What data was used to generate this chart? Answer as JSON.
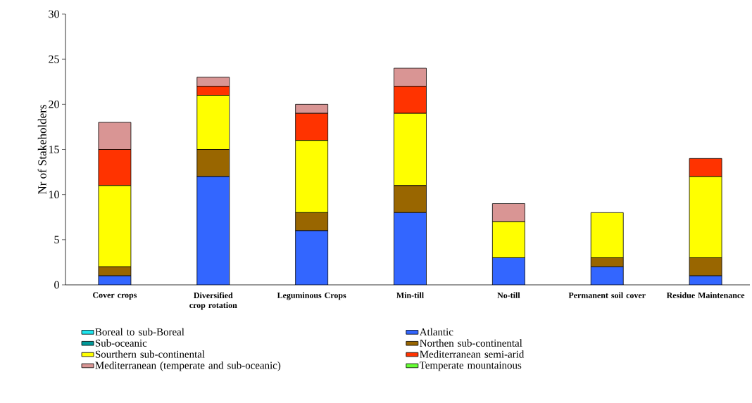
{
  "chart_data": {
    "type": "bar",
    "stacked": true,
    "ylabel": "Nr of Stakeholders",
    "categories": [
      "Cover crops",
      "Diversified crop rotation",
      "Leguminous Crops",
      "Min-till",
      "No-till",
      "Permanent soil cover",
      "Residue Maintenance"
    ],
    "series": [
      {
        "name": "Boreal to sub-Boreal",
        "color": "#1fe5ee",
        "values": [
          0,
          0,
          0,
          0,
          0,
          0,
          0
        ]
      },
      {
        "name": "Atlantic",
        "color": "#3366ff",
        "values": [
          1,
          12,
          6,
          8,
          3,
          2,
          1
        ]
      },
      {
        "name": "Sub-oceanic",
        "color": "#009999",
        "values": [
          0,
          0,
          0,
          0,
          0,
          0,
          0
        ]
      },
      {
        "name": "Northen sub-continental",
        "color": "#996600",
        "values": [
          1,
          3,
          2,
          3,
          0,
          1,
          2
        ]
      },
      {
        "name": "Sourthern sub-continental",
        "color": "#ffff00",
        "values": [
          9,
          6,
          8,
          8,
          4,
          5,
          9
        ]
      },
      {
        "name": "Mediterranean semi-arid",
        "color": "#ff3300",
        "values": [
          4,
          1,
          3,
          3,
          0,
          0,
          2
        ]
      },
      {
        "name": "Mediterranean (temperate and sub-oceanic)",
        "color": "#d99594",
        "values": [
          3,
          1,
          1,
          2,
          2,
          0,
          0
        ]
      },
      {
        "name": "Temperate mountainous",
        "color": "#66ff33",
        "values": [
          0,
          0,
          0,
          0,
          0,
          0,
          0
        ]
      }
    ],
    "ylim": [
      0,
      30
    ],
    "yticks": [
      0,
      5,
      10,
      15,
      20,
      25,
      30
    ],
    "legend": "bottom"
  }
}
